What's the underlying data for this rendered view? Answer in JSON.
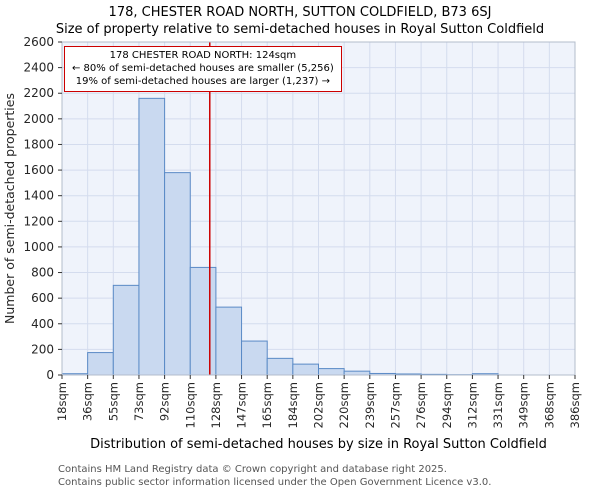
{
  "title": "178, CHESTER ROAD NORTH, SUTTON COLDFIELD, B73 6SJ",
  "subtitle": "Size of property relative to semi-detached houses in Royal Sutton Coldfield",
  "annotation": {
    "line1": "178 CHESTER ROAD NORTH: 124sqm",
    "line2": "← 80% of semi-detached houses are smaller (5,256)",
    "line3": "19% of semi-detached houses are larger (1,237) →"
  },
  "footer": {
    "line1": "Contains HM Land Registry data © Crown copyright and database right 2025.",
    "line2": "Contains public sector information licensed under the Open Government Licence v3.0."
  },
  "chart_data": {
    "type": "bar",
    "title": "178, CHESTER ROAD NORTH, SUTTON COLDFIELD, B73 6SJ — Size of property relative to semi-detached houses in Royal Sutton Coldfield",
    "xlabel": "Distribution of semi-detached houses by size in Royal Sutton Coldfield",
    "ylabel": "Number of semi-detached properties",
    "bin_edges_sqm": [
      18,
      36,
      55,
      73,
      92,
      110,
      128,
      147,
      165,
      184,
      202,
      220,
      239,
      257,
      276,
      294,
      312,
      331,
      349,
      368,
      386
    ],
    "x_tick_labels": [
      "18sqm",
      "36sqm",
      "55sqm",
      "73sqm",
      "92sqm",
      "110sqm",
      "128sqm",
      "147sqm",
      "165sqm",
      "184sqm",
      "202sqm",
      "220sqm",
      "239sqm",
      "257sqm",
      "276sqm",
      "294sqm",
      "312sqm",
      "331sqm",
      "349sqm",
      "368sqm",
      "386sqm"
    ],
    "values": [
      10,
      175,
      700,
      2160,
      1580,
      840,
      530,
      265,
      130,
      85,
      50,
      30,
      12,
      8,
      5,
      2,
      10,
      0,
      0,
      0
    ],
    "ylim": [
      0,
      2600
    ],
    "y_tick_step": 200,
    "marker_value_sqm": 124,
    "smaller_pct": "80%",
    "smaller_count": "5,256",
    "larger_pct": "19%",
    "larger_count": "1,237",
    "legend": "none",
    "grid": "on",
    "colors": {
      "bar_fill": "#c9d9f0",
      "bar_edge": "#5a8ac6",
      "marker_line": "#cc0000",
      "grid": "#d4dcee",
      "plot_bg": "#eff3fb",
      "frame": "#b3bccb",
      "annotation_border": "#cc0000"
    }
  }
}
